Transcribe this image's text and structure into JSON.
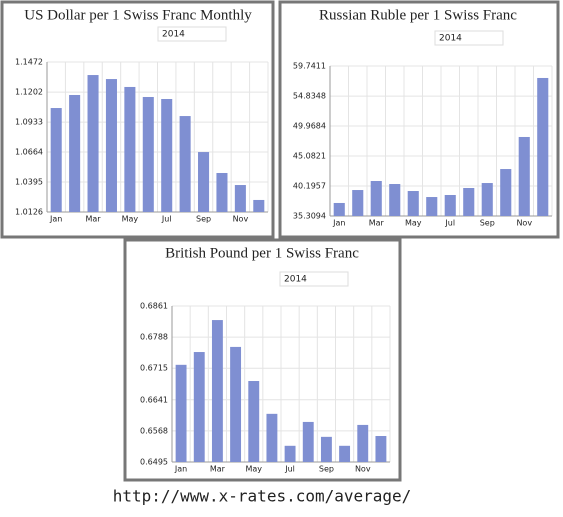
{
  "chart_data": [
    {
      "type": "bar",
      "title": "US Dollar per 1 Swiss Franc Monthly",
      "year_label": "2014",
      "categories": [
        "Jan",
        null,
        "Mar",
        null,
        "May",
        null,
        "Jul",
        null,
        "Sep",
        null,
        "Nov",
        null
      ],
      "values": [
        1.1059,
        1.1176,
        1.1355,
        1.1319,
        1.1248,
        1.1158,
        1.114,
        1.0987,
        1.0664,
        1.0476,
        1.0368,
        1.0234
      ],
      "color": "#7f8fd2",
      "ylim": [
        1.0126,
        1.1472
      ],
      "yticks": [
        1.0126,
        1.0395,
        1.0664,
        1.0933,
        1.1202,
        1.1472
      ],
      "grid": true
    },
    {
      "type": "bar",
      "title": "Russian Ruble per 1 Swiss Franc",
      "year_label": "2014",
      "categories": [
        "Jan",
        null,
        "Mar",
        null,
        "May",
        null,
        "Jul",
        null,
        "Sep",
        null,
        "Nov",
        null
      ],
      "values": [
        37.43,
        39.54,
        41.01,
        40.52,
        39.38,
        38.4,
        38.73,
        39.87,
        40.68,
        42.96,
        48.18,
        57.79
      ],
      "color": "#7f8fd2",
      "ylim": [
        35.3094,
        59.7411
      ],
      "yticks": [
        35.3094,
        40.1957,
        45.0821,
        49.9684,
        54.8348,
        59.7411
      ],
      "grid": true
    },
    {
      "type": "bar",
      "title": "British Pound per 1 Swiss Franc",
      "year_label": "2014",
      "categories": [
        "Jan",
        null,
        "Mar",
        null,
        "May",
        null,
        "Jul",
        null,
        "Sep",
        null,
        "Nov",
        null
      ],
      "values": [
        0.6723,
        0.6753,
        0.6828,
        0.6765,
        0.6685,
        0.6608,
        0.6533,
        0.6589,
        0.6554,
        0.6533,
        0.6582,
        0.6556
      ],
      "color": "#7f8fd2",
      "ylim": [
        0.6495,
        0.6861
      ],
      "yticks": [
        0.6495,
        0.6568,
        0.6641,
        0.6715,
        0.6788,
        0.6861
      ],
      "grid": true
    }
  ],
  "caption": "http://www.x-rates.com/average/"
}
